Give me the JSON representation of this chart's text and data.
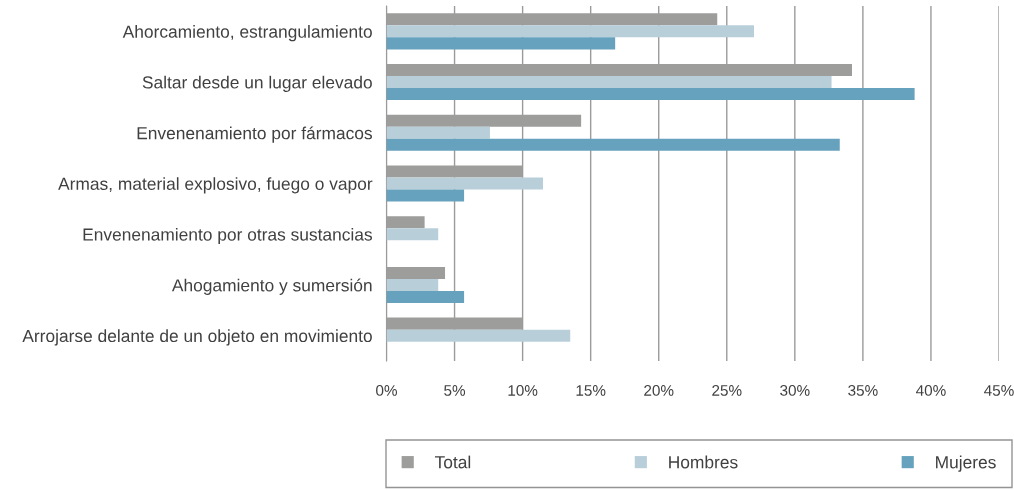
{
  "chart_data": {
    "type": "bar",
    "orientation": "horizontal",
    "categories": [
      "Ahorcamiento, estrangulamiento",
      "Saltar desde un lugar elevado",
      "Envenenamiento por fármacos",
      "Armas, material explosivo, fuego o vapor",
      "Envenenamiento por otras sustancias",
      "Ahogamiento y sumersión",
      "Arrojarse delante de un objeto en movimiento"
    ],
    "series": [
      {
        "name": "Total",
        "color": "#9d9d9c",
        "values": [
          24.3,
          34.2,
          14.3,
          10.0,
          2.8,
          4.3,
          10.0
        ]
      },
      {
        "name": "Hombres",
        "color": "#b8cfda",
        "values": [
          27.0,
          32.7,
          7.6,
          11.5,
          3.8,
          3.8,
          13.5
        ]
      },
      {
        "name": "Mujeres",
        "color": "#66a2bd",
        "values": [
          16.8,
          38.8,
          33.3,
          5.7,
          null,
          5.7,
          null
        ]
      }
    ],
    "xlim": [
      0,
      45
    ],
    "xticks": [
      {
        "value": 0,
        "label": "0%"
      },
      {
        "value": 5,
        "label": "5%"
      },
      {
        "value": 10,
        "label": "10%"
      },
      {
        "value": 15,
        "label": "15%"
      },
      {
        "value": 20,
        "label": "20%"
      },
      {
        "value": 25,
        "label": "25%"
      },
      {
        "value": 30,
        "label": "30%"
      },
      {
        "value": 35,
        "label": "35%"
      },
      {
        "value": 40,
        "label": "40%"
      },
      {
        "value": 45,
        "label": "45%"
      }
    ],
    "grid": "x",
    "legend": "bottom"
  }
}
